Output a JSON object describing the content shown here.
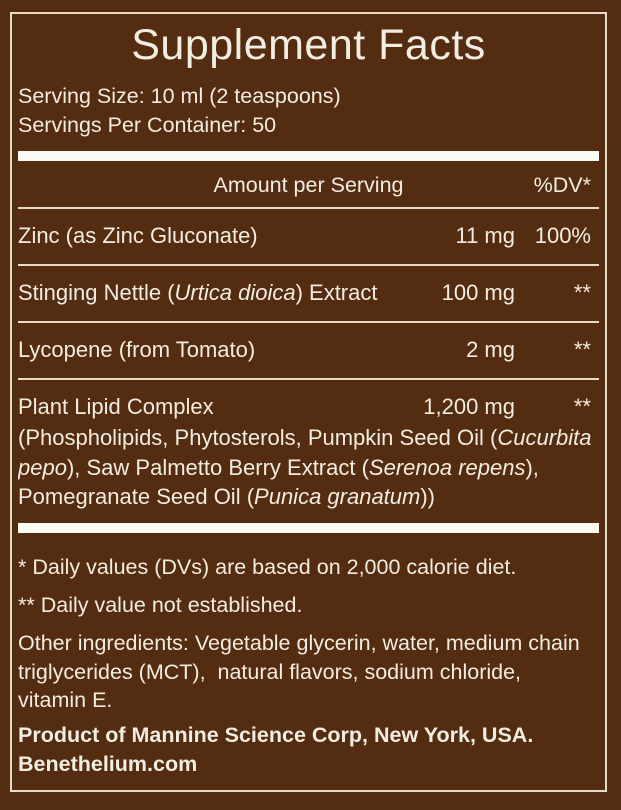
{
  "colors": {
    "background": "#542C12",
    "text": "#F2EDE1",
    "divider_thick": "#FCFAF4",
    "divider_thin": "#E7DCC8",
    "border": "#E7DCC8"
  },
  "label": {
    "title": "Supplement Facts",
    "serving_size": "Serving Size: 10 ml (2 teaspoons)",
    "servings_per_container": "Servings Per Container: 50",
    "table": {
      "amount_header": "Amount per Serving",
      "dv_header": "%DV*",
      "rows": [
        {
          "name": [
            {
              "t": "Zinc (as Zinc Gluconate)"
            }
          ],
          "amount": "11 mg",
          "dv": "100%"
        },
        {
          "name": [
            {
              "t": "Stinging Nettle ("
            },
            {
              "t": "Urtica dioica",
              "i": true
            },
            {
              "t": ") Extract"
            }
          ],
          "amount": "100 mg",
          "dv": "**"
        },
        {
          "name": [
            {
              "t": "Lycopene (from Tomato)"
            }
          ],
          "amount": "2 mg",
          "dv": "**"
        },
        {
          "name": [
            {
              "t": "Plant Lipid Complex"
            }
          ],
          "amount": "1,200 mg",
          "dv": "**",
          "description": [
            {
              "t": "(Phospholipids, Phytosterols, Pumpkin Seed Oil ("
            },
            {
              "t": "Cucurbita pepo",
              "i": true
            },
            {
              "t": "), Saw Palmetto Berry Extract ("
            },
            {
              "t": "Serenoa repens",
              "i": true
            },
            {
              "t": "), Pomegranate Seed Oil ("
            },
            {
              "t": "Punica granatum",
              "i": true
            },
            {
              "t": "))"
            }
          ]
        }
      ]
    },
    "footnotes": {
      "daily_value": "* Daily values (DVs) are based on 2,000 calorie diet.",
      "not_established": "** Daily value not established.",
      "other_ingredients": "Other ingredients: Vegetable glycerin, water, medium chain triglycerides (MCT),  natural flavors, sodium chloride, vitamin E."
    },
    "manufacturer": "Product of Mannine Science Corp, New York, USA. Benethelium.com"
  }
}
